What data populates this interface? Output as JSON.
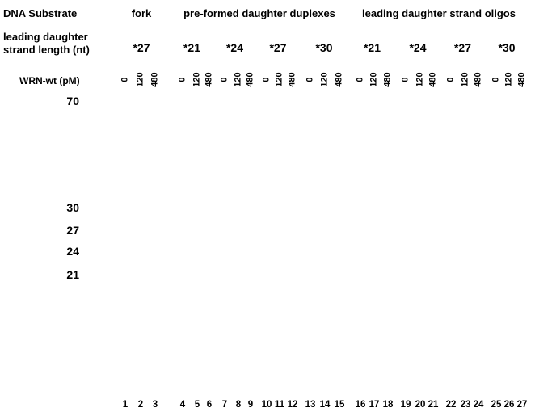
{
  "labels": {
    "dna_substrate": "DNA Substrate",
    "leading_length_line1": "leading daughter",
    "leading_length_line2": "strand length (nt)",
    "wrn_conc": "WRN-wt (pM)"
  },
  "groups": [
    {
      "label": "fork"
    },
    {
      "label": "pre-formed daughter duplexes"
    },
    {
      "label": "leading daughter strand oligos"
    }
  ],
  "lengths": [
    "*27",
    "*21",
    "*24",
    "*27",
    "*30",
    "*21",
    "*24",
    "*27",
    "*30"
  ],
  "concentrations": [
    "0",
    "120",
    "480"
  ],
  "markers": [
    "70",
    "30",
    "27",
    "24",
    "21"
  ],
  "lanes": [
    "1",
    "2",
    "3",
    "4",
    "5",
    "6",
    "7",
    "8",
    "9",
    "10",
    "11",
    "12",
    "13",
    "14",
    "15",
    "16",
    "17",
    "18",
    "19",
    "20",
    "21",
    "22",
    "23",
    "24",
    "25",
    "26",
    "27"
  ]
}
